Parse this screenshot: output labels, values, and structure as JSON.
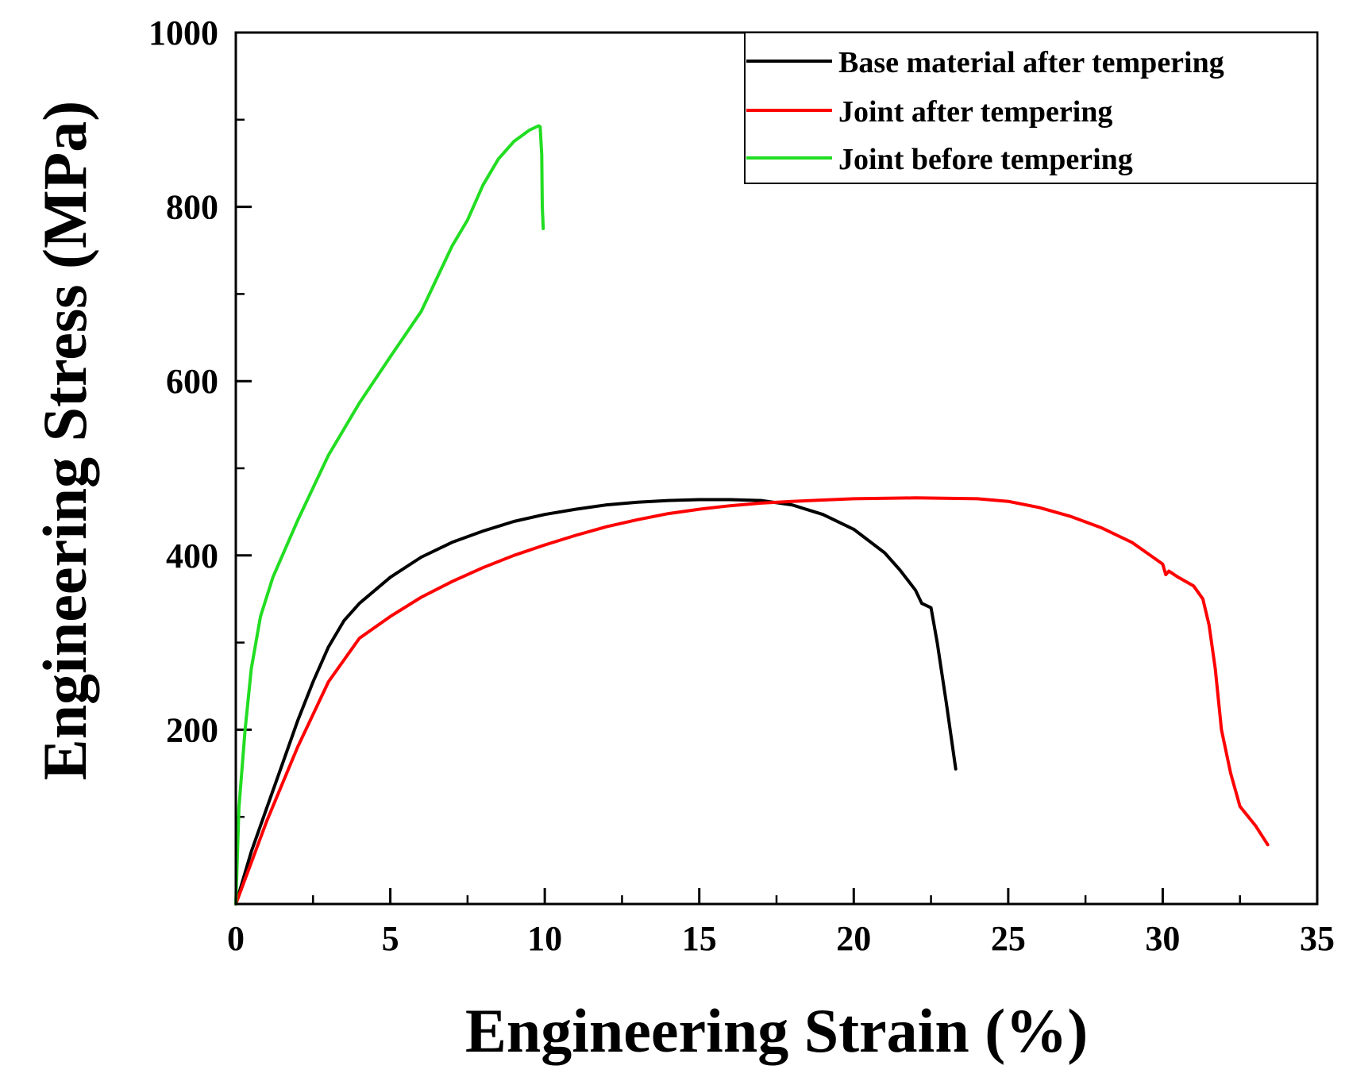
{
  "chart_data": {
    "type": "line",
    "title": "",
    "xlabel": "Engineering Strain (%)",
    "ylabel": "Engineering Stress (MPa)",
    "xlim": [
      0,
      35
    ],
    "ylim": [
      0,
      1000
    ],
    "x_ticks": [
      0,
      5,
      10,
      15,
      20,
      25,
      30,
      35
    ],
    "y_ticks": [
      200,
      400,
      600,
      800,
      1000
    ],
    "x_minor_step": 2.5,
    "y_minor_step": 100,
    "grid": false,
    "legend_position": "top-right",
    "series": [
      {
        "name": "Base material after tempering",
        "color": "#000000",
        "points": [
          [
            0,
            0
          ],
          [
            0.5,
            60
          ],
          [
            1,
            110
          ],
          [
            1.5,
            160
          ],
          [
            2,
            210
          ],
          [
            2.5,
            255
          ],
          [
            3,
            295
          ],
          [
            3.5,
            325
          ],
          [
            4,
            345
          ],
          [
            5,
            375
          ],
          [
            6,
            398
          ],
          [
            7,
            415
          ],
          [
            8,
            428
          ],
          [
            9,
            439
          ],
          [
            10,
            447
          ],
          [
            11,
            453
          ],
          [
            12,
            458
          ],
          [
            13,
            461
          ],
          [
            14,
            463
          ],
          [
            15,
            464
          ],
          [
            16,
            464
          ],
          [
            17,
            463
          ],
          [
            18,
            458
          ],
          [
            19,
            447
          ],
          [
            20,
            430
          ],
          [
            21,
            403
          ],
          [
            21.5,
            383
          ],
          [
            22,
            360
          ],
          [
            22.2,
            345
          ],
          [
            22.5,
            340
          ],
          [
            22.7,
            300
          ],
          [
            23,
            230
          ],
          [
            23.3,
            155
          ]
        ]
      },
      {
        "name": "Joint after tempering",
        "color": "#ff0000",
        "points": [
          [
            0,
            0
          ],
          [
            1,
            95
          ],
          [
            2,
            180
          ],
          [
            3,
            255
          ],
          [
            4,
            305
          ],
          [
            5,
            330
          ],
          [
            6,
            352
          ],
          [
            7,
            370
          ],
          [
            8,
            386
          ],
          [
            9,
            400
          ],
          [
            10,
            412
          ],
          [
            11,
            423
          ],
          [
            12,
            433
          ],
          [
            13,
            441
          ],
          [
            14,
            448
          ],
          [
            15,
            453
          ],
          [
            16,
            457
          ],
          [
            17,
            460
          ],
          [
            18,
            462
          ],
          [
            20,
            465
          ],
          [
            22,
            466
          ],
          [
            24,
            465
          ],
          [
            25,
            462
          ],
          [
            26,
            455
          ],
          [
            27,
            445
          ],
          [
            28,
            432
          ],
          [
            29,
            415
          ],
          [
            29.6,
            400
          ],
          [
            30,
            390
          ],
          [
            30.1,
            378
          ],
          [
            30.2,
            382
          ],
          [
            30.5,
            375
          ],
          [
            31,
            365
          ],
          [
            31.3,
            350
          ],
          [
            31.5,
            320
          ],
          [
            31.7,
            270
          ],
          [
            31.9,
            200
          ],
          [
            32.2,
            150
          ],
          [
            32.5,
            112
          ],
          [
            33,
            90
          ],
          [
            33.4,
            68
          ]
        ]
      },
      {
        "name": "Joint before tempering",
        "color": "#22dd22",
        "points": [
          [
            0,
            0
          ],
          [
            0.1,
            110
          ],
          [
            0.3,
            200
          ],
          [
            0.5,
            270
          ],
          [
            0.8,
            330
          ],
          [
            1.2,
            375
          ],
          [
            2,
            440
          ],
          [
            3,
            515
          ],
          [
            4,
            575
          ],
          [
            5,
            628
          ],
          [
            6,
            680
          ],
          [
            7,
            755
          ],
          [
            7.5,
            785
          ],
          [
            8,
            825
          ],
          [
            8.5,
            855
          ],
          [
            9,
            875
          ],
          [
            9.5,
            888
          ],
          [
            9.8,
            893
          ],
          [
            9.85,
            892
          ],
          [
            9.9,
            860
          ],
          [
            9.92,
            800
          ],
          [
            9.95,
            775
          ]
        ]
      }
    ]
  },
  "colors": {
    "axis": "#000000",
    "legend_border": "#000000",
    "background": "#ffffff"
  }
}
